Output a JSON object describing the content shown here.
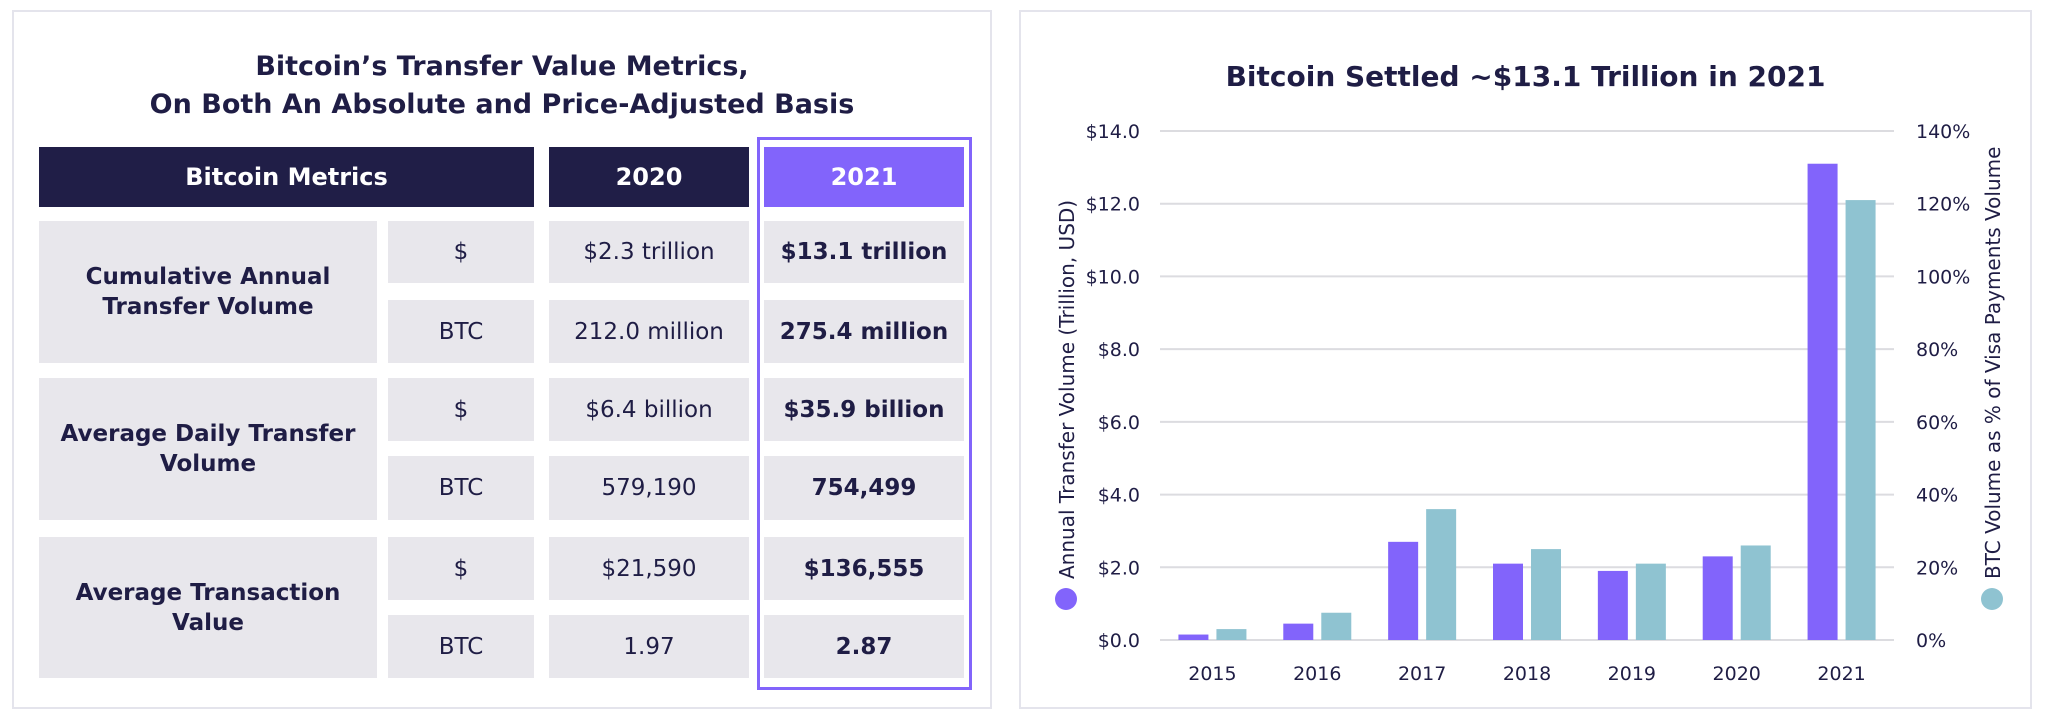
{
  "table": {
    "title_line1": "Bitcoin’s Transfer Value Metrics,",
    "title_line2": "On Both An Absolute and Price-Adjusted Basis",
    "headers": {
      "metrics": "Bitcoin Metrics",
      "y2020": "2020",
      "y2021": "2021"
    },
    "highlight_color": "#8264fb",
    "header_color": "#201e47",
    "groups": [
      {
        "label": "Cumulative Annual Transfer Volume",
        "rows": [
          {
            "unit": "$",
            "v2020": "$2.3 trillion",
            "v2021": "$13.1 trillion"
          },
          {
            "unit": "BTC",
            "v2020": "212.0 million",
            "v2021": "275.4 million"
          }
        ]
      },
      {
        "label": "Average Daily Transfer Volume",
        "rows": [
          {
            "unit": "$",
            "v2020": "$6.4 billion",
            "v2021": "$35.9 billion"
          },
          {
            "unit": "BTC",
            "v2020": "579,190",
            "v2021": "754,499"
          }
        ]
      },
      {
        "label": "Average Transaction Value",
        "rows": [
          {
            "unit": "$",
            "v2020": "$21,590",
            "v2021": "$136,555"
          },
          {
            "unit": "BTC",
            "v2020": "1.97",
            "v2021": "2.87"
          }
        ]
      }
    ]
  },
  "chart_data": {
    "type": "bar",
    "title": "Bitcoin Settled ~$13.1 Trillion in 2021",
    "categories": [
      "2015",
      "2016",
      "2017",
      "2018",
      "2019",
      "2020",
      "2021"
    ],
    "series": [
      {
        "name": "Annual Transfer Volume (Trillion, USD)",
        "axis": "left",
        "color": "#8264fb",
        "values": [
          0.15,
          0.45,
          2.7,
          2.1,
          1.9,
          2.3,
          13.1
        ]
      },
      {
        "name": "BTC Volume as % of Visa Payments Volume",
        "axis": "right",
        "color": "#8fc3d1",
        "values": [
          3,
          7.5,
          36,
          25,
          21,
          26,
          121
        ]
      }
    ],
    "ylabel": "Annual Transfer Volume (Trillion, USD)",
    "y2label": "BTC Volume as % of Visa Payments Volume",
    "ylim": [
      0,
      14
    ],
    "y2lim": [
      0,
      140
    ],
    "yticks": [
      "$0.0",
      "$2.0",
      "$4.0",
      "$6.0",
      "$8.0",
      "$10.0",
      "$12.0",
      "$14.0"
    ],
    "y2ticks": [
      "0%",
      "20%",
      "40%",
      "60%",
      "80%",
      "100%",
      "120%",
      "140%"
    ],
    "grid": true,
    "legend": "vertical along both y-axes"
  }
}
